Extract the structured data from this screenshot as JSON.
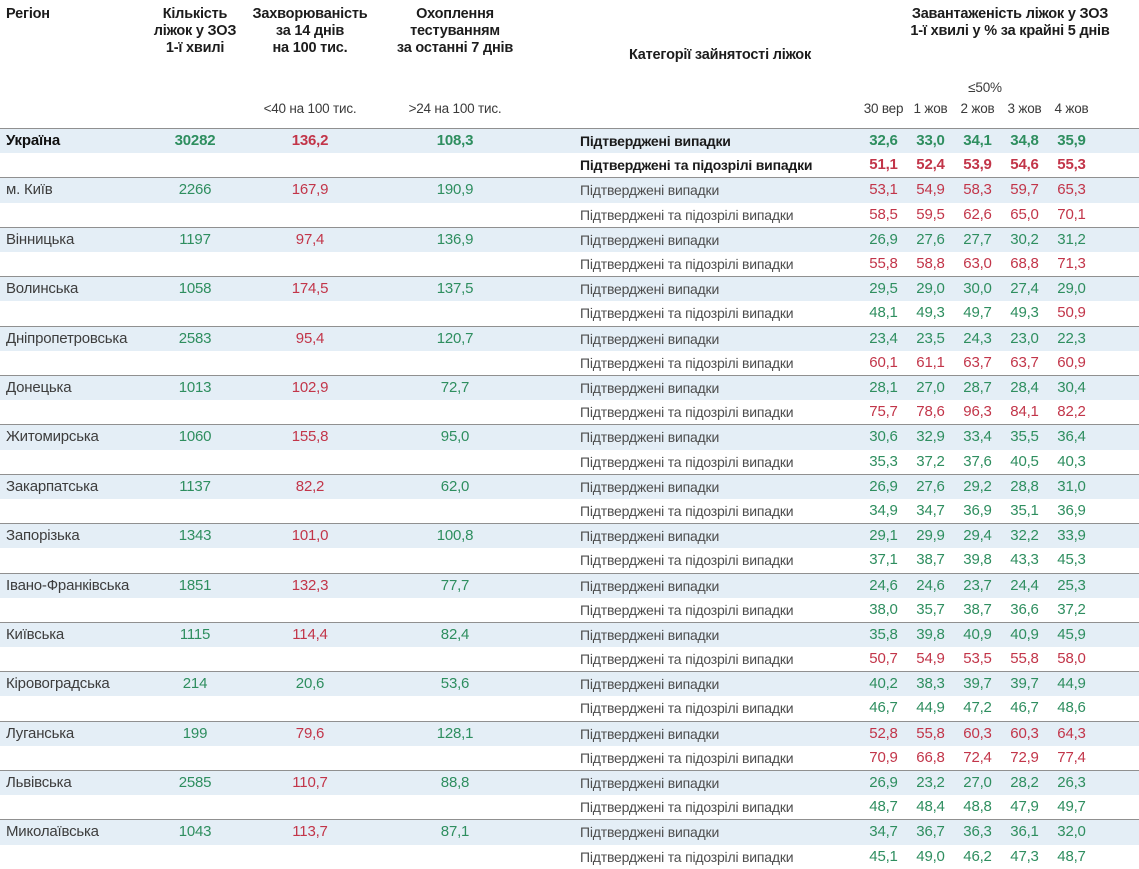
{
  "colors": {
    "green": "#2e8e5f",
    "red": "#c23549",
    "stripe_row_background": "#e4eef6",
    "separator_line": "#909090"
  },
  "chart_data": {
    "type": "table",
    "headers": {
      "region": "Регіон",
      "beds": "Кількість\nліжок у ЗОЗ\n1-ї хвилі",
      "incidence": "Захворюваність\nза 14 днів\nна 100 тис.",
      "testing": "Охоплення\nтестуванням\nза останні 7 днів",
      "category": "Категорії зайнятості ліжок",
      "occupancy": "Завантаженість ліжок у ЗОЗ\n1-ї хвилі у % за крайні 5 днів"
    },
    "thresholds": {
      "incidence": "<40 на 100 тис.",
      "testing": ">24 на 100 тис.",
      "occupancy": "≤50%"
    },
    "color_rules": {
      "occupancy_green_max": 50,
      "incidence_red_min": 40,
      "testing_green_min": 24
    },
    "dates": [
      "30 вер",
      "1 жов",
      "2 жов",
      "3 жов",
      "4 жов"
    ],
    "row_labels": {
      "confirmed": "Підтверджені випадки",
      "confirmed_suspected": "Підтверджені та підозрілі випадки"
    },
    "regions": [
      {
        "name": "Україна",
        "bold": true,
        "beds": "30282",
        "incidence": "136,2",
        "testing": "108,3",
        "confirmed": [
          "32,6",
          "33,0",
          "34,1",
          "34,8",
          "35,9"
        ],
        "confirmed_suspected": [
          "51,1",
          "52,4",
          "53,9",
          "54,6",
          "55,3"
        ]
      },
      {
        "name": "м. Київ",
        "bold": false,
        "beds": "2266",
        "incidence": "167,9",
        "testing": "190,9",
        "confirmed": [
          "53,1",
          "54,9",
          "58,3",
          "59,7",
          "65,3"
        ],
        "confirmed_suspected": [
          "58,5",
          "59,5",
          "62,6",
          "65,0",
          "70,1"
        ]
      },
      {
        "name": "Вінницька",
        "bold": false,
        "beds": "1197",
        "incidence": "97,4",
        "testing": "136,9",
        "confirmed": [
          "26,9",
          "27,6",
          "27,7",
          "30,2",
          "31,2"
        ],
        "confirmed_suspected": [
          "55,8",
          "58,8",
          "63,0",
          "68,8",
          "71,3"
        ]
      },
      {
        "name": "Волинська",
        "bold": false,
        "beds": "1058",
        "incidence": "174,5",
        "testing": "137,5",
        "confirmed": [
          "29,5",
          "29,0",
          "30,0",
          "27,4",
          "29,0"
        ],
        "confirmed_suspected": [
          "48,1",
          "49,3",
          "49,7",
          "49,3",
          "50,9"
        ]
      },
      {
        "name": "Дніпропетровська",
        "bold": false,
        "beds": "2583",
        "incidence": "95,4",
        "testing": "120,7",
        "confirmed": [
          "23,4",
          "23,5",
          "24,3",
          "23,0",
          "22,3"
        ],
        "confirmed_suspected": [
          "60,1",
          "61,1",
          "63,7",
          "63,7",
          "60,9"
        ]
      },
      {
        "name": "Донецька",
        "bold": false,
        "beds": "1013",
        "incidence": "102,9",
        "testing": "72,7",
        "confirmed": [
          "28,1",
          "27,0",
          "28,7",
          "28,4",
          "30,4"
        ],
        "confirmed_suspected": [
          "75,7",
          "78,6",
          "96,3",
          "84,1",
          "82,2"
        ]
      },
      {
        "name": "Житомирська",
        "bold": false,
        "beds": "1060",
        "incidence": "155,8",
        "testing": "95,0",
        "confirmed": [
          "30,6",
          "32,9",
          "33,4",
          "35,5",
          "36,4"
        ],
        "confirmed_suspected": [
          "35,3",
          "37,2",
          "37,6",
          "40,5",
          "40,3"
        ]
      },
      {
        "name": "Закарпатська",
        "bold": false,
        "beds": "1137",
        "incidence": "82,2",
        "testing": "62,0",
        "confirmed": [
          "26,9",
          "27,6",
          "29,2",
          "28,8",
          "31,0"
        ],
        "confirmed_suspected": [
          "34,9",
          "34,7",
          "36,9",
          "35,1",
          "36,9"
        ]
      },
      {
        "name": "Запорізька",
        "bold": false,
        "beds": "1343",
        "incidence": "101,0",
        "testing": "100,8",
        "confirmed": [
          "29,1",
          "29,9",
          "29,4",
          "32,2",
          "33,9"
        ],
        "confirmed_suspected": [
          "37,1",
          "38,7",
          "39,8",
          "43,3",
          "45,3"
        ]
      },
      {
        "name": "Івано-Франківська",
        "bold": false,
        "beds": "1851",
        "incidence": "132,3",
        "testing": "77,7",
        "confirmed": [
          "24,6",
          "24,6",
          "23,7",
          "24,4",
          "25,3"
        ],
        "confirmed_suspected": [
          "38,0",
          "35,7",
          "38,7",
          "36,6",
          "37,2"
        ]
      },
      {
        "name": "Київська",
        "bold": false,
        "beds": "1115",
        "incidence": "114,4",
        "testing": "82,4",
        "confirmed": [
          "35,8",
          "39,8",
          "40,9",
          "40,9",
          "45,9"
        ],
        "confirmed_suspected": [
          "50,7",
          "54,9",
          "53,5",
          "55,8",
          "58,0"
        ]
      },
      {
        "name": "Кіровоградська",
        "bold": false,
        "beds": "214",
        "incidence": "20,6",
        "testing": "53,6",
        "confirmed": [
          "40,2",
          "38,3",
          "39,7",
          "39,7",
          "44,9"
        ],
        "confirmed_suspected": [
          "46,7",
          "44,9",
          "47,2",
          "46,7",
          "48,6"
        ]
      },
      {
        "name": "Луганська",
        "bold": false,
        "beds": "199",
        "incidence": "79,6",
        "testing": "128,1",
        "confirmed": [
          "52,8",
          "55,8",
          "60,3",
          "60,3",
          "64,3"
        ],
        "confirmed_suspected": [
          "70,9",
          "66,8",
          "72,4",
          "72,9",
          "77,4"
        ]
      },
      {
        "name": "Львівська",
        "bold": false,
        "beds": "2585",
        "incidence": "110,7",
        "testing": "88,8",
        "confirmed": [
          "26,9",
          "23,2",
          "27,0",
          "28,2",
          "26,3"
        ],
        "confirmed_suspected": [
          "48,7",
          "48,4",
          "48,8",
          "47,9",
          "49,7"
        ]
      },
      {
        "name": "Миколаївська",
        "bold": false,
        "beds": "1043",
        "incidence": "113,7",
        "testing": "87,1",
        "confirmed": [
          "34,7",
          "36,7",
          "36,3",
          "36,1",
          "32,0"
        ],
        "confirmed_suspected": [
          "45,1",
          "49,0",
          "46,2",
          "47,3",
          "48,7"
        ]
      }
    ]
  }
}
